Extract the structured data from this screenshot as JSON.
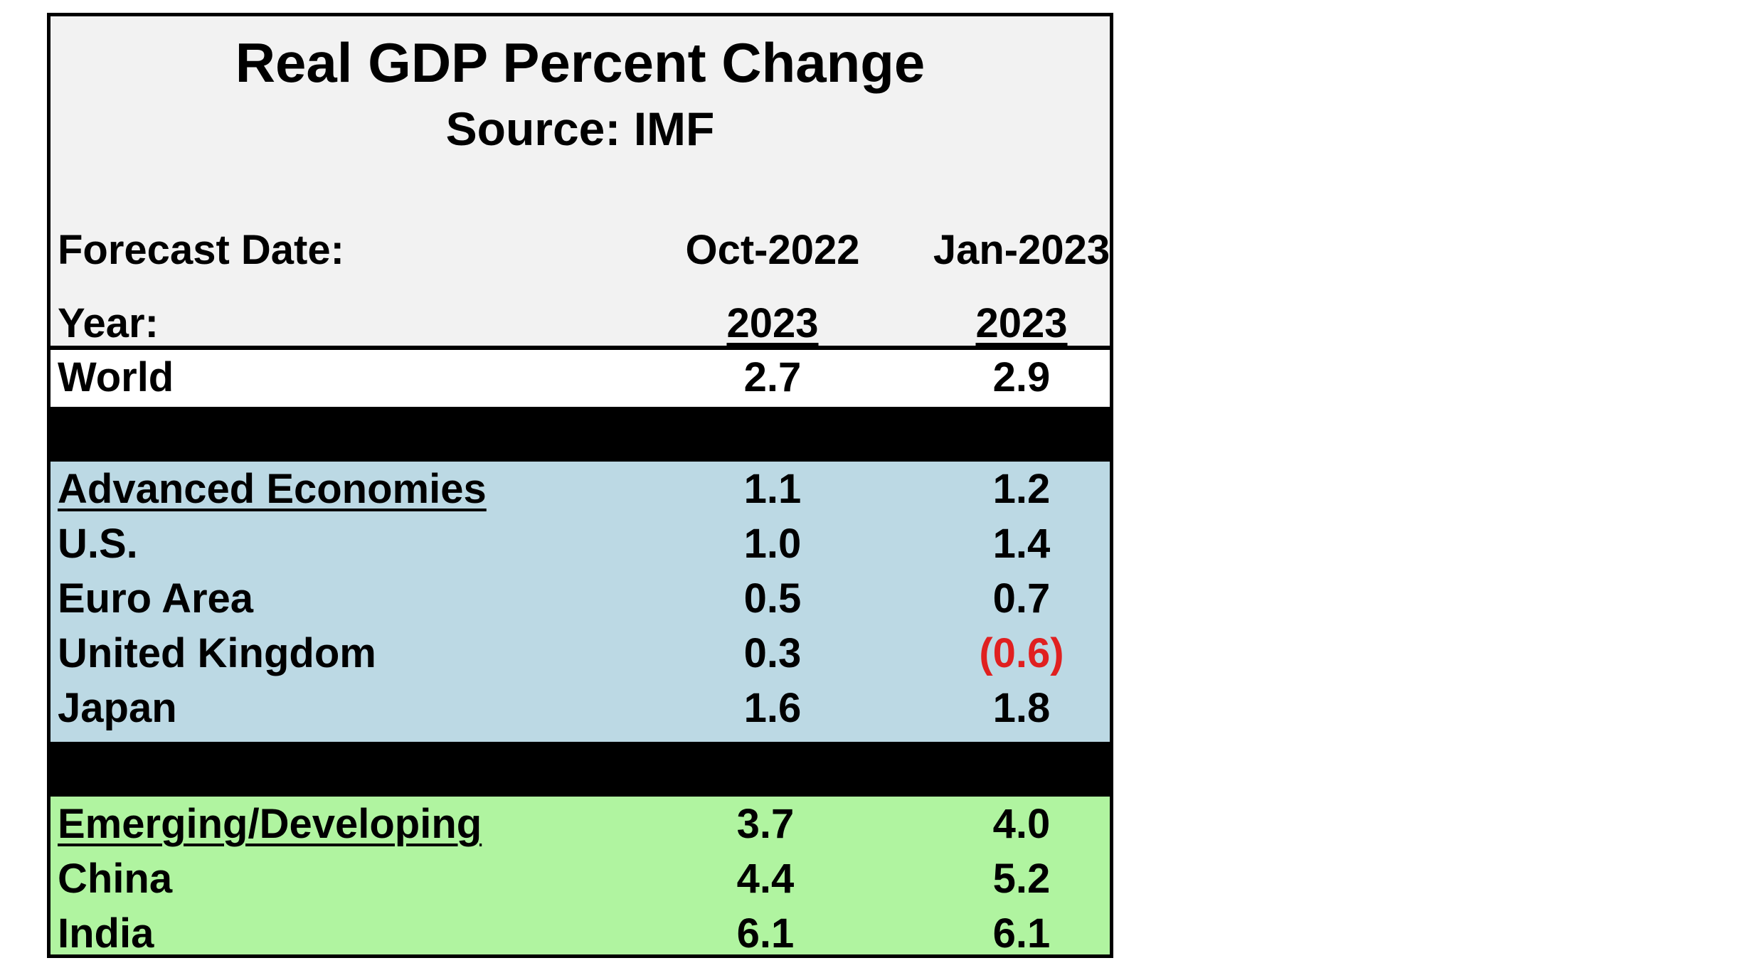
{
  "table": {
    "title": "Real GDP Percent Change",
    "source": "Source:  IMF",
    "forecast_label": "Forecast Date:",
    "forecast_dates": [
      "Oct-2022",
      "Jan-2023"
    ],
    "year_label": "Year:",
    "years": [
      "2023",
      "2023"
    ],
    "world": {
      "label": "World",
      "oct": "2.7",
      "jan": "2.9"
    },
    "advanced": [
      {
        "label": "Advanced Economies",
        "oct": "1.1",
        "jan": "1.2"
      },
      {
        "label": "U.S.",
        "oct": "1.0",
        "jan": "1.4"
      },
      {
        "label": "Euro Area",
        "oct": "0.5",
        "jan": "0.7"
      },
      {
        "label": "United Kingdom",
        "oct": "0.3",
        "jan": "(0.6)"
      },
      {
        "label": "Japan",
        "oct": "1.6",
        "jan": "1.8"
      }
    ],
    "emerging": [
      {
        "label": "Emerging/Developing",
        "oct": "3.7",
        "jan": "4.0"
      },
      {
        "label": "China",
        "oct": "4.4",
        "jan": "5.2"
      },
      {
        "label": "India",
        "oct": "6.1",
        "jan": "6.1"
      }
    ]
  },
  "colors": {
    "header_bg": "#f2f2f2",
    "advanced_bg": "#bcd9e4",
    "emerging_bg": "#b0f4a0",
    "negative": "#e02020",
    "separator": "#000000"
  }
}
